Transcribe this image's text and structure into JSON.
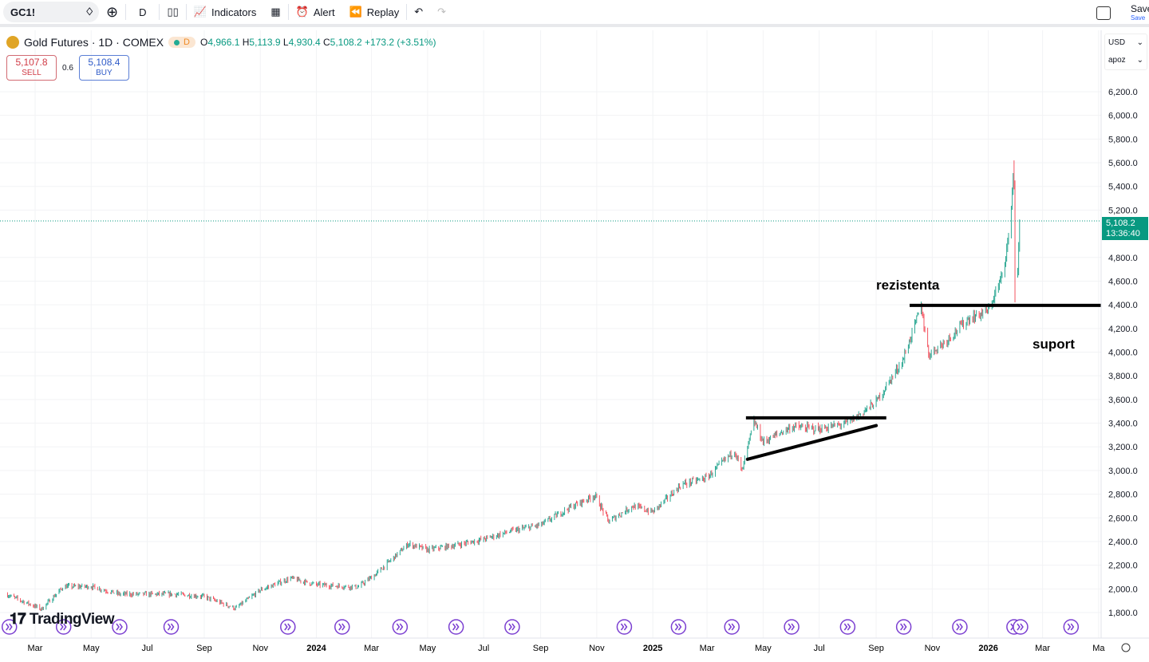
{
  "toolbar": {
    "symbol": "GC1!",
    "interval": "D",
    "indicators": "Indicators",
    "alert": "Alert",
    "replay": "Replay",
    "save": "Save",
    "save_sub": "Save"
  },
  "legend": {
    "title": "Gold Futures · 1D · COMEX",
    "badge": "D",
    "o_label": "O",
    "o": "4,966.1",
    "h_label": "H",
    "h": "5,113.9",
    "l_label": "L",
    "l": "4,930.4",
    "c_label": "C",
    "c": "5,108.2",
    "change": "+173.2 (+3.51%)"
  },
  "trade": {
    "sell_price": "5,107.8",
    "sell": "SELL",
    "spread": "0.6",
    "buy_price": "5,108.4",
    "buy": "BUY"
  },
  "axis_menu": {
    "currency": "USD",
    "unit": "apoz"
  },
  "price_label": {
    "price": "5,108.2",
    "countdown": "13:36:40"
  },
  "colors": {
    "up": "#089981",
    "down": "#f23645",
    "events": "#7b3fd1",
    "drawing": "#000000"
  },
  "branding": "TradingView",
  "chart_data": {
    "type": "candlestick",
    "ylim": [
      1700,
      6300
    ],
    "y_ticks": [
      "6,200.0",
      "6,000.0",
      "5,800.0",
      "5,600.0",
      "5,400.0",
      "5,200.0",
      "4,800.0",
      "4,600.0",
      "4,400.0",
      "4,200.0",
      "4,000.0",
      "3,800.0",
      "3,600.0",
      "3,400.0",
      "3,200.0",
      "3,000.0",
      "2,800.0",
      "2,600.0",
      "2,400.0",
      "2,200.0",
      "2,000.0",
      "1,800.0"
    ],
    "y_tick_values": [
      6200,
      6000,
      5800,
      5600,
      5400,
      5200,
      4800,
      4600,
      4400,
      4200,
      4000,
      3800,
      3600,
      3400,
      3200,
      3000,
      2800,
      2600,
      2400,
      2200,
      2000,
      1800
    ],
    "x_ticks": [
      [
        "2023-03-01",
        "Mar"
      ],
      [
        "2023-05-01",
        "May"
      ],
      [
        "2023-07-01",
        "Jul"
      ],
      [
        "2023-09-01",
        "Sep"
      ],
      [
        "2023-11-01",
        "Nov"
      ],
      [
        "2024-01-01",
        "2024"
      ],
      [
        "2024-03-01",
        "Mar"
      ],
      [
        "2024-05-01",
        "May"
      ],
      [
        "2024-07-01",
        "Jul"
      ],
      [
        "2024-09-01",
        "Sep"
      ],
      [
        "2024-11-01",
        "Nov"
      ],
      [
        "2025-01-01",
        "2025"
      ],
      [
        "2025-03-01",
        "Mar"
      ],
      [
        "2025-05-01",
        "May"
      ],
      [
        "2025-07-01",
        "Jul"
      ],
      [
        "2025-09-01",
        "Sep"
      ],
      [
        "2025-11-01",
        "Nov"
      ],
      [
        "2026-01-01",
        "2026"
      ],
      [
        "2026-03-01",
        "Mar"
      ],
      [
        "2026-05-01",
        "Ma"
      ]
    ],
    "approx_close": [
      [
        "2023-01-28",
        1955
      ],
      [
        "2023-03-08",
        1830
      ],
      [
        "2023-04-01",
        2020
      ],
      [
        "2023-05-01",
        2020
      ],
      [
        "2023-06-01",
        1955
      ],
      [
        "2023-07-01",
        1955
      ],
      [
        "2023-08-01",
        1955
      ],
      [
        "2023-09-01",
        1935
      ],
      [
        "2023-10-05",
        1835
      ],
      [
        "2023-11-01",
        1990
      ],
      [
        "2023-12-04",
        2090
      ],
      [
        "2024-01-01",
        2035
      ],
      [
        "2024-02-15",
        2015
      ],
      [
        "2024-03-05",
        2120
      ],
      [
        "2024-04-10",
        2380
      ],
      [
        "2024-05-01",
        2330
      ],
      [
        "2024-06-01",
        2370
      ],
      [
        "2024-07-01",
        2420
      ],
      [
        "2024-08-01",
        2490
      ],
      [
        "2024-09-01",
        2540
      ],
      [
        "2024-10-01",
        2680
      ],
      [
        "2024-10-30",
        2790
      ],
      [
        "2024-11-14",
        2570
      ],
      [
        "2024-12-10",
        2700
      ],
      [
        "2025-01-01",
        2650
      ],
      [
        "2025-02-01",
        2880
      ],
      [
        "2025-03-01",
        2940
      ],
      [
        "2025-03-31",
        3170
      ],
      [
        "2025-04-08",
        2990
      ],
      [
        "2025-04-21",
        3420
      ],
      [
        "2025-05-01",
        3240
      ],
      [
        "2025-06-01",
        3370
      ],
      [
        "2025-07-01",
        3350
      ],
      [
        "2025-08-01",
        3400
      ],
      [
        "2025-09-01",
        3580
      ],
      [
        "2025-09-30",
        3930
      ],
      [
        "2025-10-20",
        4390
      ],
      [
        "2025-10-28",
        3980
      ],
      [
        "2025-11-15",
        4090
      ],
      [
        "2025-12-10",
        4280
      ],
      [
        "2026-01-01",
        4350
      ],
      [
        "2026-01-15",
        4620
      ],
      [
        "2026-01-24",
        5000
      ],
      [
        "2026-01-28",
        5500
      ],
      [
        "2026-01-29",
        5420
      ],
      [
        "2026-01-30",
        4700
      ],
      [
        "2026-02-02",
        4650
      ],
      [
        "2026-02-04",
        5108.2
      ]
    ],
    "last_high": 5620,
    "last_drop_low": 4420,
    "current_price": 5108.2,
    "drawings": {
      "resistance_label": "rezistenta",
      "support_label": "suport",
      "support_resistance_level": 4395,
      "triangle_top": {
        "from": "2025-04-21",
        "to": "2025-09-12",
        "price": 3445
      },
      "triangle_bottom": {
        "from": "2025-04-14",
        "to": "2025-09-01",
        "price_from": 3095,
        "price_to": 3380
      }
    },
    "event_dates": [
      "2023-02-01",
      "2023-04-01",
      "2023-06-01",
      "2023-07-27",
      "2023-12-01",
      "2024-01-29",
      "2024-04-01",
      "2024-06-01",
      "2024-08-01",
      "2024-12-01",
      "2025-01-29",
      "2025-03-28",
      "2025-06-01",
      "2025-08-01",
      "2025-10-01",
      "2025-12-01",
      "2026-01-29",
      "2026-02-05",
      "2026-04-01"
    ],
    "grid": true
  }
}
